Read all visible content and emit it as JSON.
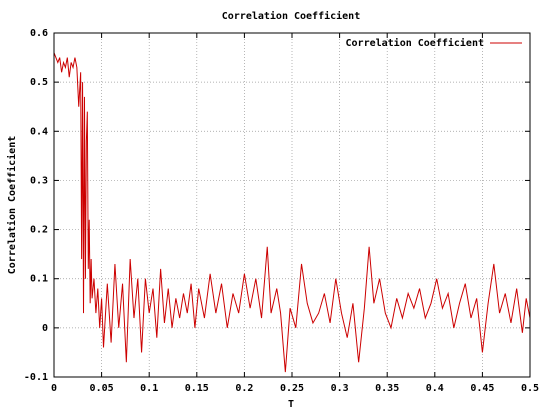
{
  "chart_data": {
    "type": "line",
    "title": "Correlation Coefficient",
    "x_label": "T",
    "y_label": "Correlation Coefficient",
    "xlim": [
      0,
      0.5
    ],
    "ylim": [
      -0.1,
      0.6
    ],
    "xticks": [
      0,
      0.05,
      0.1,
      0.15,
      0.2,
      0.25,
      0.3,
      0.35,
      0.4,
      0.45,
      0.5
    ],
    "yticks": [
      -0.1,
      0,
      0.1,
      0.2,
      0.3,
      0.4,
      0.5,
      0.6
    ],
    "grid": true,
    "legend": "top-right",
    "x": [
      0,
      0.002,
      0.004,
      0.006,
      0.008,
      0.01,
      0.012,
      0.014,
      0.016,
      0.018,
      0.02,
      0.022,
      0.024,
      0.026,
      0.028,
      0.029,
      0.03,
      0.031,
      0.032,
      0.033,
      0.034,
      0.035,
      0.036,
      0.037,
      0.038,
      0.039,
      0.04,
      0.042,
      0.044,
      0.046,
      0.048,
      0.05,
      0.052,
      0.056,
      0.06,
      0.064,
      0.068,
      0.072,
      0.076,
      0.08,
      0.084,
      0.088,
      0.092,
      0.096,
      0.1,
      0.104,
      0.108,
      0.112,
      0.116,
      0.12,
      0.124,
      0.128,
      0.132,
      0.136,
      0.14,
      0.144,
      0.148,
      0.152,
      0.158,
      0.164,
      0.17,
      0.176,
      0.182,
      0.188,
      0.194,
      0.2,
      0.206,
      0.212,
      0.218,
      0.224,
      0.228,
      0.234,
      0.238,
      0.243,
      0.248,
      0.254,
      0.26,
      0.266,
      0.272,
      0.278,
      0.284,
      0.29,
      0.296,
      0.302,
      0.308,
      0.314,
      0.32,
      0.326,
      0.331,
      0.336,
      0.342,
      0.348,
      0.354,
      0.36,
      0.366,
      0.372,
      0.378,
      0.384,
      0.39,
      0.396,
      0.402,
      0.408,
      0.414,
      0.42,
      0.426,
      0.432,
      0.438,
      0.444,
      0.45,
      0.456,
      0.462,
      0.468,
      0.474,
      0.48,
      0.486,
      0.492,
      0.496,
      0.5
    ],
    "series": [
      {
        "name": "Correlation Coefficient",
        "color": "#cc0000",
        "values": [
          0.56,
          0.55,
          0.54,
          0.55,
          0.52,
          0.54,
          0.53,
          0.55,
          0.51,
          0.54,
          0.53,
          0.55,
          0.53,
          0.45,
          0.52,
          0.14,
          0.5,
          0.03,
          0.47,
          0.1,
          0.38,
          0.44,
          0.12,
          0.22,
          0.05,
          0.14,
          0.06,
          0.1,
          0.03,
          0.08,
          0.0,
          0.06,
          -0.04,
          0.09,
          -0.03,
          0.13,
          0.0,
          0.09,
          -0.07,
          0.14,
          0.02,
          0.1,
          -0.05,
          0.1,
          0.03,
          0.08,
          -0.02,
          0.12,
          0.01,
          0.08,
          0.0,
          0.06,
          0.02,
          0.07,
          0.03,
          0.09,
          0.0,
          0.08,
          0.02,
          0.11,
          0.03,
          0.09,
          0.0,
          0.07,
          0.03,
          0.11,
          0.04,
          0.1,
          0.02,
          0.165,
          0.03,
          0.08,
          0.03,
          -0.09,
          0.04,
          0.0,
          0.13,
          0.05,
          0.01,
          0.03,
          0.07,
          0.01,
          0.1,
          0.03,
          -0.02,
          0.05,
          -0.07,
          0.04,
          0.165,
          0.05,
          0.1,
          0.03,
          0.0,
          0.06,
          0.02,
          0.07,
          0.04,
          0.08,
          0.02,
          0.05,
          0.1,
          0.04,
          0.07,
          0.0,
          0.05,
          0.09,
          0.02,
          0.06,
          -0.05,
          0.05,
          0.13,
          0.03,
          0.07,
          0.01,
          0.08,
          -0.01,
          0.06,
          0.02
        ]
      }
    ]
  }
}
